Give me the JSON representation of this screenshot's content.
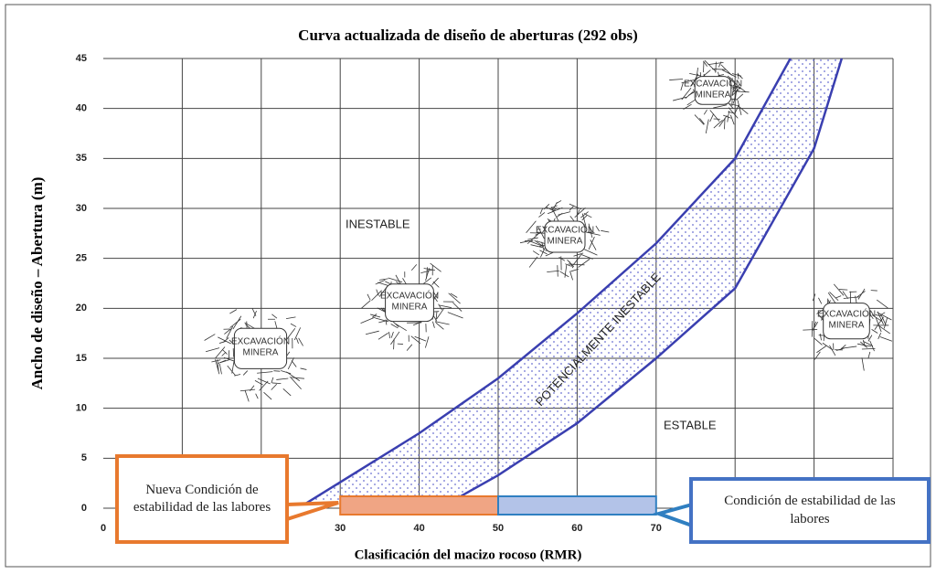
{
  "chart_data": {
    "type": "stability-graph",
    "title": "Curva actualizada de diseño de aberturas (292 obs)",
    "xlabel": "Clasificación del macizo rocoso (RMR)",
    "ylabel": "Ancho de diseño – Abertura (m)",
    "xlim": [
      0,
      100
    ],
    "ylim": [
      0,
      45
    ],
    "xticks": [
      0,
      30,
      40,
      50,
      60,
      70
    ],
    "yticks": [
      0,
      5,
      10,
      15,
      20,
      25,
      30,
      35,
      40,
      45
    ],
    "xgrid": [
      10,
      20,
      30,
      40,
      50,
      60,
      70,
      80,
      90,
      100
    ],
    "grid": true,
    "curves": [
      {
        "x": [
          25.7,
          30,
          40,
          50,
          60,
          70,
          80,
          87
        ],
        "y": [
          0.5,
          2.6,
          7.5,
          13,
          19.5,
          26.5,
          35,
          45
        ],
        "color": "#3a3fb0"
      },
      {
        "x": [
          43.7,
          50,
          60,
          70,
          80,
          85,
          90,
          93.5
        ],
        "y": [
          0.5,
          3.3,
          8.5,
          15,
          22,
          29,
          36,
          45
        ],
        "color": "#3a3fb0"
      }
    ],
    "band_color": "#6a6fd0",
    "ranges": [
      {
        "x": [
          30,
          50
        ],
        "color": "#f0a584",
        "edge": "#e8792e"
      },
      {
        "x": [
          50,
          70
        ],
        "color": "#b3c3e8",
        "edge": "#2f7fc1"
      }
    ],
    "zones": {
      "inestable": "INESTABLE",
      "estable": "ESTABLE",
      "potential": "POTENCIALMENTE INESTABLE"
    },
    "excavations": [
      [
        "EXCAVACIÓN",
        "MINERA"
      ],
      [
        "EXCAVACIÓN",
        "MINERA"
      ],
      [
        "EXCAVACIÓN",
        "MINERA"
      ],
      [
        "EXCAVACIÓN",
        "MINERA"
      ],
      [
        "EXCAVACIÓN",
        "MINERA"
      ]
    ],
    "callouts": {
      "new": "Nueva Condición de estabilidad de las labores",
      "current": "Condición de estabilidad de las labores"
    }
  }
}
